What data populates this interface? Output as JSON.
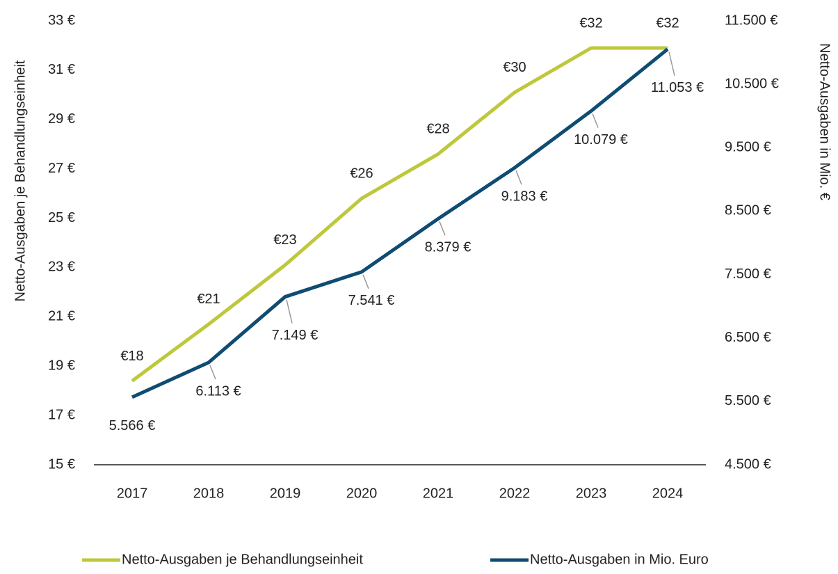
{
  "chart_data": {
    "type": "line",
    "categories": [
      "2017",
      "2018",
      "2019",
      "2020",
      "2021",
      "2022",
      "2023",
      "2024"
    ],
    "series": [
      {
        "name": "Netto-Ausgaben je Behandlungseinheit",
        "color": "#bdc83b",
        "axis": "y",
        "values": [
          18.4,
          20.7,
          23.1,
          25.8,
          27.6,
          30.1,
          31.9,
          31.9
        ],
        "value_labels": [
          "€18",
          "€21",
          "€23",
          "€26",
          "€28",
          "€30",
          "€32",
          "€32"
        ]
      },
      {
        "name": "Netto-Ausgaben in Mio. Euro",
        "color": "#0f4c72",
        "axis": "y2",
        "values": [
          5566,
          6113,
          7149,
          7541,
          8379,
          9183,
          10079,
          11053
        ],
        "value_labels": [
          "5.566 €",
          "6.113 €",
          "7.149 €",
          "7.541 €",
          "8.379 €",
          "9.183 €",
          "10.079 €",
          "11.053 €"
        ]
      }
    ],
    "y_label": "Netto-Ausgaben je Behandlungseinheit",
    "y2_label": "Netto-Ausgaben in Mio. €",
    "ylim": [
      15,
      33
    ],
    "yticks": [
      {
        "value": 15,
        "label": "15 €"
      },
      {
        "value": 17,
        "label": "17 €"
      },
      {
        "value": 19,
        "label": "19 €"
      },
      {
        "value": 21,
        "label": "21 €"
      },
      {
        "value": 23,
        "label": "23 €"
      },
      {
        "value": 25,
        "label": "25 €"
      },
      {
        "value": 27,
        "label": "27 €"
      },
      {
        "value": 29,
        "label": "29 €"
      },
      {
        "value": 31,
        "label": "31 €"
      },
      {
        "value": 33,
        "label": "33 €"
      }
    ],
    "y2lim": [
      4500,
      11500
    ],
    "y2ticks": [
      {
        "value": 4500,
        "label": "4.500 €"
      },
      {
        "value": 5500,
        "label": "5.500 €"
      },
      {
        "value": 6500,
        "label": "6.500 €"
      },
      {
        "value": 7500,
        "label": "7.500 €"
      },
      {
        "value": 8500,
        "label": "8.500 €"
      },
      {
        "value": 9500,
        "label": "9.500 €"
      },
      {
        "value": 10500,
        "label": "10.500 €"
      },
      {
        "value": 11500,
        "label": "11.500 €"
      }
    ],
    "legend": "bottom",
    "grid": false
  }
}
